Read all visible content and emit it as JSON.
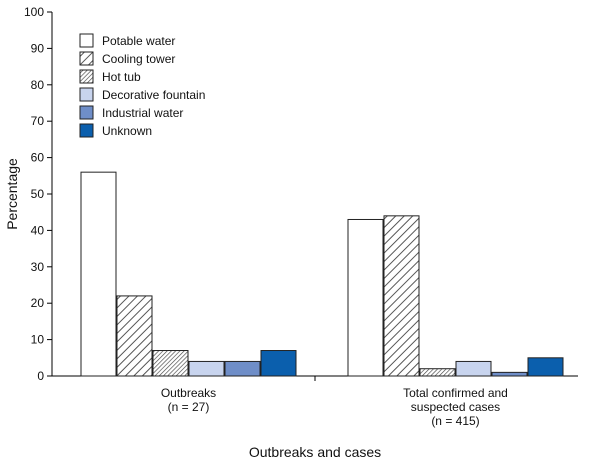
{
  "chart_data": {
    "type": "bar",
    "categories": [
      [
        "Outbreaks",
        "(n = 27)"
      ],
      [
        "Total confirmed and",
        "suspected cases",
        "(n = 415)"
      ]
    ],
    "series": [
      {
        "name": "Potable water",
        "values": [
          56,
          43
        ],
        "color": "#ffffff",
        "pattern": "none"
      },
      {
        "name": "Cooling tower",
        "values": [
          22,
          44
        ],
        "color": "#ffffff",
        "pattern": "diagonal-hatch"
      },
      {
        "name": "Hot tub",
        "values": [
          7,
          2
        ],
        "color": "#ffffff",
        "pattern": "dense-diagonal-hatch"
      },
      {
        "name": "Decorative fountain",
        "values": [
          4,
          4
        ],
        "color": "#c8d4ee",
        "pattern": "none"
      },
      {
        "name": "Industrial water",
        "values": [
          4,
          1
        ],
        "color": "#6f8ec8",
        "pattern": "none"
      },
      {
        "name": "Unknown",
        "values": [
          7,
          5
        ],
        "color": "#0b5fad",
        "pattern": "none"
      }
    ],
    "xlabel": "Outbreaks and cases",
    "ylabel": "Percentage",
    "ylim": [
      0,
      100
    ],
    "yticks": [
      0,
      10,
      20,
      30,
      40,
      50,
      60,
      70,
      80,
      90,
      100
    ],
    "grid": false,
    "legend": {
      "position": "top-left",
      "frame": false
    }
  }
}
